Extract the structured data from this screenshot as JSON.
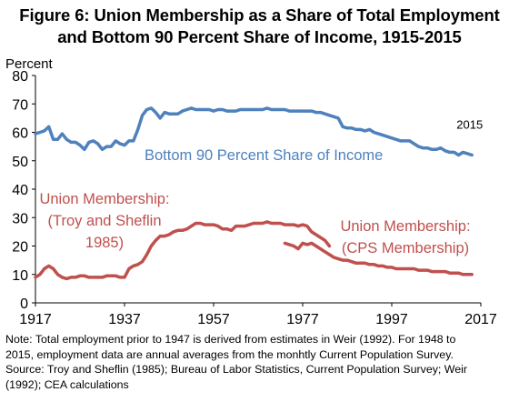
{
  "header": {
    "title_line1": "Figure 6: Union Membership as a Share of Total Employment",
    "title_line2": "and Bottom 90 Percent Share of Income, 1915-2015"
  },
  "notes": [
    "Note: Total employment prior to 1947 is derived from estimates in Weir (1992). For 1948 to",
    "2015, employment data are annual averages from the monhtly Current Population Survey.",
    "Source: Troy and Sheflin (1985); Bureau of Labor Statistics, Current Population Survey; Weir",
    "(1992); CEA calculations"
  ],
  "chart_data": {
    "type": "line",
    "ylabel": "Percent",
    "xlim": [
      1917,
      2017
    ],
    "ylim": [
      0,
      80
    ],
    "xticks": [
      1917,
      1937,
      1957,
      1977,
      1997,
      2017
    ],
    "yticks": [
      0,
      10,
      20,
      30,
      40,
      50,
      60,
      70,
      80
    ],
    "grid": false,
    "colors": {
      "income": "#4f81bd",
      "union": "#c0504d"
    },
    "annotations": [
      {
        "text": "2015",
        "x": 2014.5,
        "y": 62.5,
        "color": "#000000"
      }
    ],
    "series_labels": {
      "income": [
        "Bottom 90 Percent Share of Income"
      ],
      "union_troy": [
        "Union Membership:",
        "(Troy and Sheflin",
        "1985)"
      ],
      "union_cps": [
        "Union Membership:",
        "(CPS Membership)"
      ]
    },
    "series": [
      {
        "key": "income",
        "name": "Bottom 90 Percent Share of Income",
        "color": "#4f81bd",
        "x": [
          1917,
          1918,
          1919,
          1920,
          1921,
          1922,
          1923,
          1924,
          1925,
          1926,
          1927,
          1928,
          1929,
          1930,
          1931,
          1932,
          1933,
          1934,
          1935,
          1936,
          1937,
          1938,
          1939,
          1940,
          1941,
          1942,
          1943,
          1944,
          1945,
          1946,
          1947,
          1948,
          1949,
          1950,
          1951,
          1952,
          1953,
          1954,
          1955,
          1956,
          1957,
          1958,
          1959,
          1960,
          1961,
          1962,
          1963,
          1964,
          1965,
          1966,
          1967,
          1968,
          1969,
          1970,
          1971,
          1972,
          1973,
          1974,
          1975,
          1976,
          1977,
          1978,
          1979,
          1980,
          1981,
          1982,
          1983,
          1984,
          1985,
          1986,
          1987,
          1988,
          1989,
          1990,
          1991,
          1992,
          1993,
          1994,
          1995,
          1996,
          1997,
          1998,
          1999,
          2000,
          2001,
          2002,
          2003,
          2004,
          2005,
          2006,
          2007,
          2008,
          2009,
          2010,
          2011,
          2012,
          2013,
          2014,
          2015
        ],
        "values": [
          59.5,
          60,
          60.5,
          62,
          57.5,
          57.5,
          59.5,
          57.5,
          56.5,
          56.5,
          55.5,
          54,
          56.5,
          57,
          56,
          54,
          55,
          55,
          57,
          56,
          55.5,
          57,
          57,
          61,
          66,
          68,
          68.5,
          67,
          65,
          67,
          66.5,
          66.5,
          66.5,
          67.5,
          68,
          68.5,
          68,
          68,
          68,
          68,
          67.5,
          68,
          68,
          67.5,
          67.5,
          67.5,
          68,
          68,
          68,
          68,
          68,
          68,
          68.5,
          68,
          68,
          68,
          68,
          67.5,
          67.5,
          67.5,
          67.5,
          67.5,
          67.5,
          67,
          67,
          66.5,
          66,
          65.5,
          65,
          62,
          61.5,
          61.5,
          61,
          61,
          60.5,
          61,
          60,
          59.5,
          59,
          58.5,
          58,
          57.5,
          57,
          57,
          57,
          56,
          55,
          54.5,
          54.5,
          54,
          54,
          54.5,
          53.5,
          53,
          53,
          52,
          53,
          52.5,
          52
        ]
      },
      {
        "key": "union_troy",
        "name": "Union Membership: (Troy and Sheflin 1985)",
        "color": "#c0504d",
        "x": [
          1917,
          1918,
          1919,
          1920,
          1921,
          1922,
          1923,
          1924,
          1925,
          1926,
          1927,
          1928,
          1929,
          1930,
          1931,
          1932,
          1933,
          1934,
          1935,
          1936,
          1937,
          1938,
          1939,
          1940,
          1941,
          1942,
          1943,
          1944,
          1945,
          1946,
          1947,
          1948,
          1949,
          1950,
          1951,
          1952,
          1953,
          1954,
          1955,
          1956,
          1957,
          1958,
          1959,
          1960,
          1961,
          1962,
          1963,
          1964,
          1965,
          1966,
          1967,
          1968,
          1969,
          1970,
          1971,
          1972,
          1973,
          1974,
          1975,
          1976,
          1977,
          1978,
          1979,
          1980,
          1981,
          1982,
          1983
        ],
        "values": [
          9,
          10,
          12,
          13,
          12,
          10,
          9,
          8.5,
          9,
          9,
          9.5,
          9.5,
          9,
          9,
          9,
          9,
          9.5,
          9.5,
          9.5,
          9,
          9,
          12,
          13,
          13.5,
          14.5,
          17,
          20,
          22,
          23.5,
          23.5,
          24,
          25,
          25.5,
          25.5,
          26,
          27,
          28,
          28,
          27.5,
          27.5,
          27.5,
          27,
          26,
          26,
          25.5,
          27,
          27,
          27,
          27.5,
          28,
          28,
          28,
          28.5,
          28,
          28,
          28,
          27.5,
          27.5,
          27.5,
          27,
          27.5,
          27,
          25,
          24,
          23,
          22,
          20
        ]
      },
      {
        "key": "union_cps",
        "name": "Union Membership: (CPS Membership)",
        "color": "#c0504d",
        "x": [
          1973,
          1974,
          1975,
          1976,
          1977,
          1978,
          1979,
          1980,
          1981,
          1982,
          1983,
          1984,
          1985,
          1986,
          1987,
          1988,
          1989,
          1990,
          1991,
          1992,
          1993,
          1994,
          1995,
          1996,
          1997,
          1998,
          1999,
          2000,
          2001,
          2002,
          2003,
          2004,
          2005,
          2006,
          2007,
          2008,
          2009,
          2010,
          2011,
          2012,
          2013,
          2014,
          2015
        ],
        "values": [
          21,
          20.5,
          20,
          19,
          21,
          20.5,
          21,
          20,
          19,
          18,
          17,
          16,
          15.5,
          15,
          15,
          14.5,
          14,
          14,
          14,
          13.5,
          13.5,
          13,
          13,
          12.5,
          12.5,
          12,
          12,
          12,
          12,
          12,
          11.5,
          11.5,
          11.5,
          11,
          11,
          11,
          11,
          10.5,
          10.5,
          10.5,
          10,
          10,
          10
        ]
      }
    ]
  }
}
